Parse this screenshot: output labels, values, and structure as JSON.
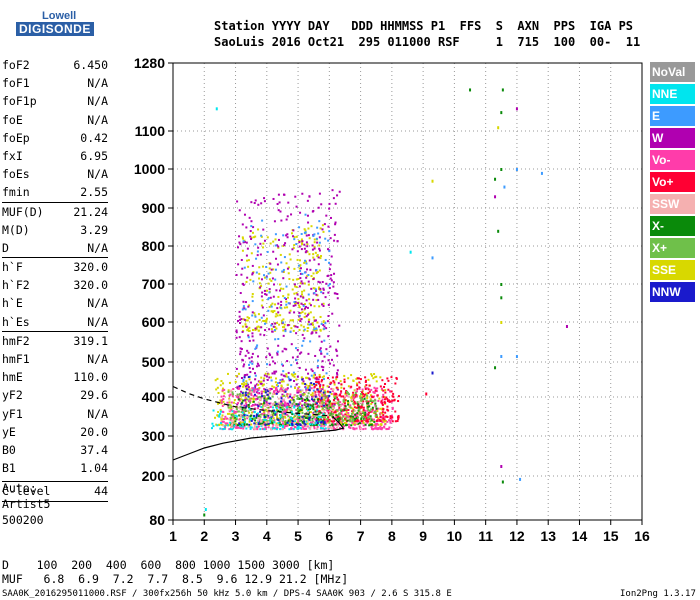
{
  "logo": {
    "line1": "Lowell",
    "line2": "DIGISONDE"
  },
  "header": {
    "row1": "Station YYYY DAY   DDD HHMMSS P1  FFS  S  AXN  PPS  IGA PS",
    "row2": "SaoLuis 2016 Oct21  295 011000 RSF     1  715  100  00-  11"
  },
  "params": [
    {
      "label": "foF2",
      "value": "6.450"
    },
    {
      "label": "foF1",
      "value": "N/A"
    },
    {
      "label": "foF1p",
      "value": "N/A"
    },
    {
      "label": "foE",
      "value": "N/A"
    },
    {
      "label": "foEp",
      "value": "0.42"
    },
    {
      "label": "fxI",
      "value": "6.95"
    },
    {
      "label": "foEs",
      "value": "N/A"
    },
    {
      "label": "fmin",
      "value": "2.55"
    },
    {
      "label": "MUF(D)",
      "value": "21.24"
    },
    {
      "label": "M(D)",
      "value": "3.29"
    },
    {
      "label": "D",
      "value": "N/A"
    },
    {
      "label": "h`F",
      "value": "320.0"
    },
    {
      "label": "h`F2",
      "value": "320.0"
    },
    {
      "label": "h`E",
      "value": "N/A"
    },
    {
      "label": "h`Es",
      "value": "N/A"
    },
    {
      "label": "hmF2",
      "value": "319.1"
    },
    {
      "label": "hmF1",
      "value": "N/A"
    },
    {
      "label": "hmE",
      "value": "110.0"
    },
    {
      "label": "yF2",
      "value": "29.6"
    },
    {
      "label": "yF1",
      "value": "N/A"
    },
    {
      "label": "yE",
      "value": "20.0"
    },
    {
      "label": "B0",
      "value": "37.4"
    },
    {
      "label": "B1",
      "value": "1.04"
    },
    {
      "label": "C-level",
      "value": "44"
    }
  ],
  "auto": {
    "line1": "Auto:",
    "line2": "Artist5",
    "line3": "500200"
  },
  "legend": [
    {
      "label": "NoVal",
      "color": "#999999"
    },
    {
      "label": "NNE",
      "color": "#00e5ee"
    },
    {
      "label": "E",
      "color": "#3d9bff"
    },
    {
      "label": "W",
      "color": "#b000b0"
    },
    {
      "label": "Vo-",
      "color": "#ff3caa"
    },
    {
      "label": "Vo+",
      "color": "#ff0033"
    },
    {
      "label": "SSW",
      "color": "#f5b0b0"
    },
    {
      "label": "X-",
      "color": "#0a8a0a"
    },
    {
      "label": "X+",
      "color": "#6fc04a"
    },
    {
      "label": "SSE",
      "color": "#d8d800"
    },
    {
      "label": "NNW",
      "color": "#1a1acc"
    }
  ],
  "footer": {
    "d_row": "D    100  200  400  600  800 1000 1500 3000 [km]",
    "muf_row": "MUF   6.8  6.9  7.2  7.7  8.5  9.6 12.9 21.2 [MHz]",
    "info": "SAA0K_2016295011000.RSF / 300fx256h 50 kHz 5.0 km / DPS-4 SAA0K 903 / 2.6 S 315.8 E",
    "version": "Ion2Png 1.3.17"
  },
  "chart_data": {
    "type": "scatter",
    "x_ticks": [
      1,
      2,
      3,
      4,
      5,
      6,
      7,
      8,
      9,
      10,
      11,
      12,
      13,
      14,
      15,
      16
    ],
    "y_ticks": [
      80,
      200,
      300,
      400,
      500,
      600,
      700,
      800,
      900,
      1000,
      1100,
      1280
    ],
    "xlim": [
      1,
      16
    ],
    "ylim": [
      80,
      1280
    ],
    "x_scale": "linear",
    "y_scale": "nonlinear",
    "grid": "dotted",
    "legend_position": "right",
    "clusters": [
      {
        "color": "#d8d800",
        "xmin": 3.2,
        "xmax": 5.8,
        "ymin": 580,
        "ymax": 860,
        "n": 260
      },
      {
        "color": "#b000b0",
        "xmin": 3.0,
        "xmax": 6.3,
        "ymin": 380,
        "ymax": 950,
        "n": 550
      },
      {
        "color": "#3d9bff",
        "xmin": 3.2,
        "xmax": 6.0,
        "ymin": 420,
        "ymax": 900,
        "n": 150
      },
      {
        "color": "#d8d800",
        "xmin": 2.3,
        "xmax": 7.8,
        "ymin": 330,
        "ymax": 470,
        "n": 500
      },
      {
        "color": "#ff3caa",
        "xmin": 2.5,
        "xmax": 8.0,
        "ymin": 320,
        "ymax": 430,
        "n": 550
      },
      {
        "color": "#ff0033",
        "xmin": 5.5,
        "xmax": 8.2,
        "ymin": 340,
        "ymax": 460,
        "n": 260
      },
      {
        "color": "#0a8a0a",
        "xmin": 2.8,
        "xmax": 7.5,
        "ymin": 330,
        "ymax": 400,
        "n": 220
      },
      {
        "color": "#6fc04a",
        "xmin": 2.6,
        "xmax": 7.5,
        "ymin": 340,
        "ymax": 420,
        "n": 220
      },
      {
        "color": "#00e5ee",
        "xmin": 2.2,
        "xmax": 6.0,
        "ymin": 320,
        "ymax": 380,
        "n": 120
      },
      {
        "color": "#1a1acc",
        "xmin": 3.0,
        "xmax": 6.0,
        "ymin": 330,
        "ymax": 460,
        "n": 100
      },
      {
        "color": "#f5b0b0",
        "xmin": 2.5,
        "xmax": 7.0,
        "ymin": 320,
        "ymax": 430,
        "n": 120
      }
    ],
    "points": [
      {
        "x": 11.55,
        "y": 1210,
        "c": "#0a8a0a"
      },
      {
        "x": 10.5,
        "y": 1210,
        "c": "#0a8a0a"
      },
      {
        "x": 11.5,
        "y": 1150,
        "c": "#0a8a0a"
      },
      {
        "x": 12.0,
        "y": 1160,
        "c": "#b000b0"
      },
      {
        "x": 11.4,
        "y": 1110,
        "c": "#d8d800"
      },
      {
        "x": 2.4,
        "y": 1160,
        "c": "#00e5ee"
      },
      {
        "x": 11.5,
        "y": 1000,
        "c": "#0a8a0a"
      },
      {
        "x": 11.3,
        "y": 975,
        "c": "#0a8a0a"
      },
      {
        "x": 11.6,
        "y": 955,
        "c": "#3d9bff"
      },
      {
        "x": 11.3,
        "y": 930,
        "c": "#b000b0"
      },
      {
        "x": 12.8,
        "y": 990,
        "c": "#3d9bff"
      },
      {
        "x": 12.0,
        "y": 1000,
        "c": "#3d9bff"
      },
      {
        "x": 9.3,
        "y": 970,
        "c": "#d8d800"
      },
      {
        "x": 11.4,
        "y": 840,
        "c": "#0a8a0a"
      },
      {
        "x": 8.6,
        "y": 785,
        "c": "#00e5ee"
      },
      {
        "x": 9.3,
        "y": 770,
        "c": "#3d9bff"
      },
      {
        "x": 11.5,
        "y": 700,
        "c": "#0a8a0a"
      },
      {
        "x": 11.5,
        "y": 665,
        "c": "#0a8a0a"
      },
      {
        "x": 11.5,
        "y": 600,
        "c": "#d8d800"
      },
      {
        "x": 13.6,
        "y": 590,
        "c": "#b000b0"
      },
      {
        "x": 11.5,
        "y": 515,
        "c": "#3d9bff"
      },
      {
        "x": 12.0,
        "y": 515,
        "c": "#3d9bff"
      },
      {
        "x": 11.3,
        "y": 485,
        "c": "#0a8a0a"
      },
      {
        "x": 9.3,
        "y": 470,
        "c": "#1a1acc"
      },
      {
        "x": 11.5,
        "y": 225,
        "c": "#b000b0"
      },
      {
        "x": 12.1,
        "y": 192,
        "c": "#3d9bff"
      },
      {
        "x": 11.55,
        "y": 185,
        "c": "#0a8a0a"
      },
      {
        "x": 2.0,
        "y": 95,
        "c": "#0a8a0a"
      },
      {
        "x": 2.05,
        "y": 110,
        "c": "#00e5ee"
      },
      {
        "x": 9.1,
        "y": 410,
        "c": "#ff0033"
      }
    ],
    "profile_solid": [
      [
        1,
        240
      ],
      [
        1.5,
        255
      ],
      [
        2,
        270
      ],
      [
        2.6,
        282
      ],
      [
        3.5,
        295
      ],
      [
        4.5,
        302
      ],
      [
        5.5,
        310
      ],
      [
        6.2,
        315
      ],
      [
        6.45,
        320
      ],
      [
        6.3,
        335
      ],
      [
        6.1,
        350
      ]
    ],
    "profile_dashed": [
      [
        1,
        430
      ],
      [
        1.5,
        410
      ],
      [
        2,
        395
      ],
      [
        2.5,
        385
      ],
      [
        3,
        375
      ],
      [
        4,
        365
      ],
      [
        5,
        358
      ],
      [
        6,
        352
      ]
    ]
  }
}
